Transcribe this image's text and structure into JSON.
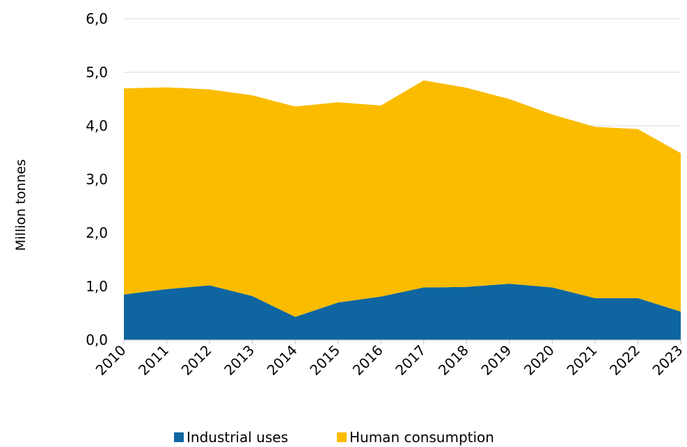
{
  "chart_data": {
    "type": "area",
    "stacked": true,
    "x": [
      "2010",
      "2011",
      "2012",
      "2013",
      "2014",
      "2015",
      "2016",
      "2017",
      "2018",
      "2019",
      "2020",
      "2021",
      "2022",
      "2023"
    ],
    "series": [
      {
        "name": "Industrial uses",
        "color": "#0e65a0",
        "values": [
          0.85,
          0.95,
          1.02,
          0.82,
          0.43,
          0.7,
          0.81,
          0.98,
          0.99,
          1.05,
          0.98,
          0.78,
          0.78,
          0.53
        ]
      },
      {
        "name": "Human consumption",
        "color": "#fbbc00",
        "values": [
          3.85,
          3.77,
          3.66,
          3.75,
          3.93,
          3.74,
          3.57,
          3.87,
          3.72,
          3.45,
          3.23,
          3.2,
          3.16,
          2.96
        ]
      }
    ],
    "yticks": [
      "0,0",
      "1,0",
      "2,0",
      "3,0",
      "4,0",
      "5,0",
      "6,0"
    ],
    "ylim": [
      0,
      6
    ],
    "ylabel": "Million tonnes",
    "xlabel": "",
    "grid": "horizontal",
    "legend_position": "bottom"
  }
}
